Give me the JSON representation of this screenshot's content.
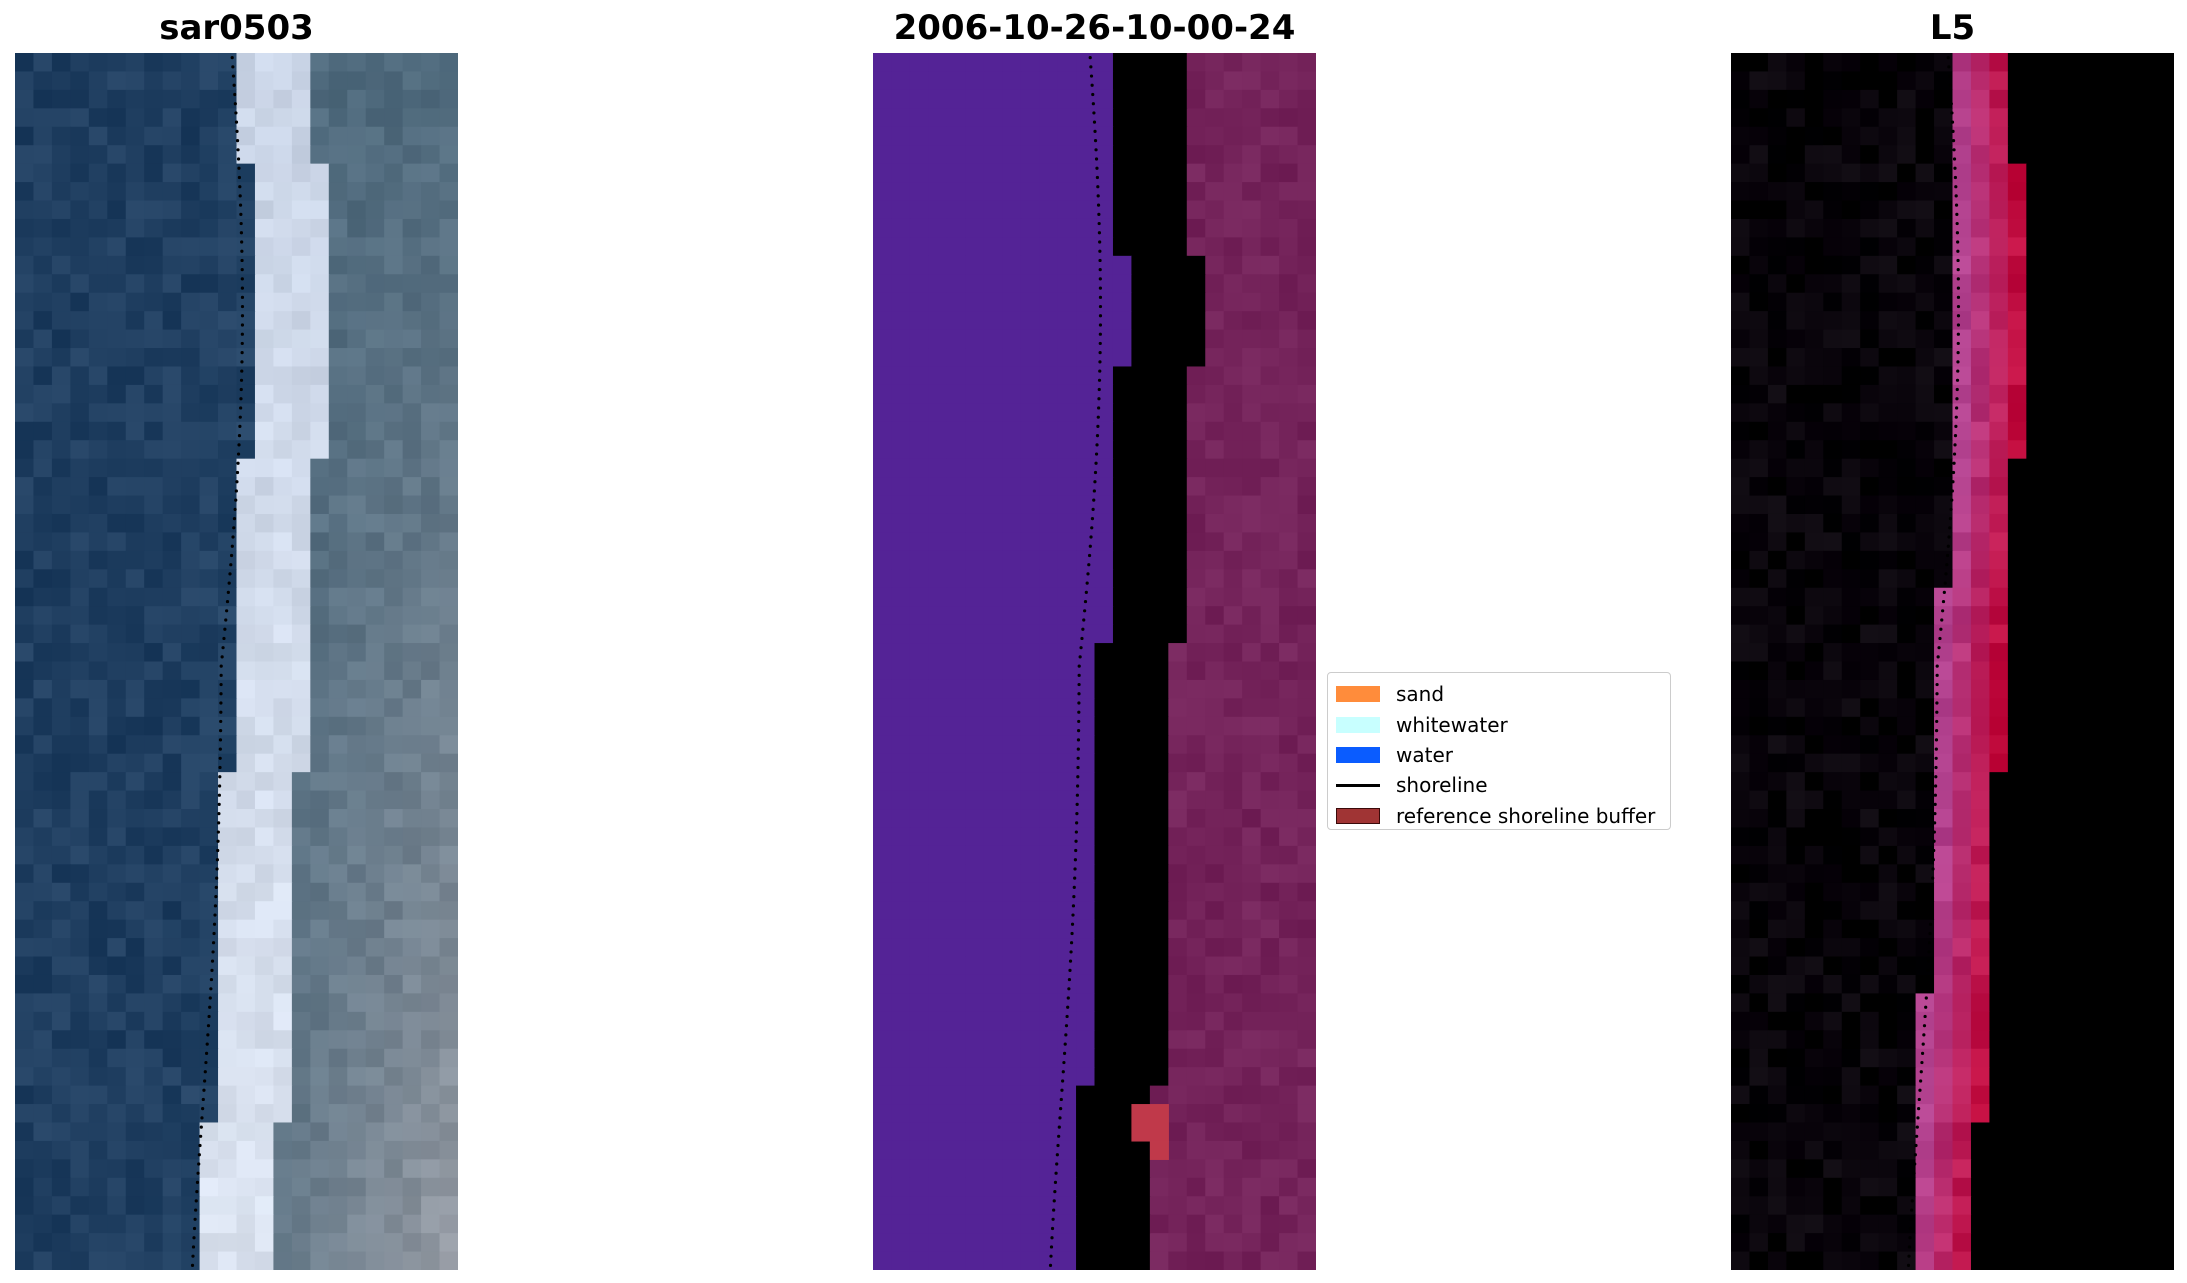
{
  "panels": {
    "rgb": {
      "title": "sar0503"
    },
    "classification": {
      "title": "2006-10-26-10-00-24"
    },
    "index": {
      "title": "L5"
    }
  },
  "legend": {
    "items": [
      {
        "label": "sand",
        "color": "#ff8c3b",
        "kind": "patch"
      },
      {
        "label": "whitewater",
        "color": "#c8ffff",
        "kind": "patch"
      },
      {
        "label": "water",
        "color": "#0a5cff",
        "kind": "patch"
      },
      {
        "label": "shoreline",
        "color": "#000000",
        "kind": "line"
      },
      {
        "label": "reference shoreline buffer",
        "color": "#a03434",
        "kind": "patch"
      }
    ]
  },
  "colors": {
    "rgb_water": "#1f3e60",
    "rgb_surf": "#c9d4e6",
    "rgb_land": "#4f6a7d",
    "class_water": "#542396",
    "class_band": "#b05a93",
    "class_land": "#74235a",
    "class_buffer": "#c0394a",
    "index_low": "#6c1aa8",
    "index_mid": "#b2418e",
    "index_high": "#c10a3c"
  }
}
